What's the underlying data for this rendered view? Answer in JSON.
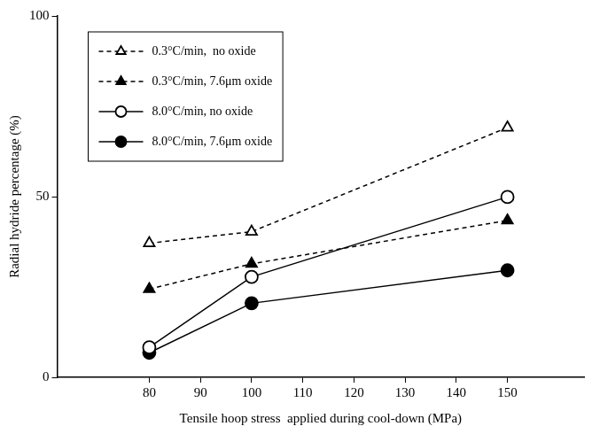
{
  "chart_data": {
    "type": "line",
    "x_label": "Tensile hoop stress  applied during cool-down (MPa)",
    "y_label": "Radial hydride percentage (%)",
    "x": [
      80,
      100,
      150
    ],
    "xlim": [
      62,
      165
    ],
    "xticks": [
      80,
      90,
      100,
      110,
      120,
      130,
      140,
      150
    ],
    "ylim": [
      0,
      100
    ],
    "yticks": [
      0,
      50,
      100
    ],
    "grid": false,
    "legend": "top-left",
    "series": [
      {
        "name": "0.3°C/min,  no oxide",
        "color": "#000000",
        "marker": "triangle_open",
        "line_style": "dashed",
        "values": [
          37.1,
          40.3,
          69.1
        ]
      },
      {
        "name": "0.3°C/min, 7.6μm oxide",
        "color": "#000000",
        "marker": "triangle",
        "line_style": "dashed",
        "values": [
          24.4,
          31.4,
          43.4
        ]
      },
      {
        "name": "8.0°C/min, no oxide",
        "color": "#000000",
        "marker": "circle_open",
        "line_style": "solid",
        "values": [
          8.3,
          27.8,
          49.9
        ]
      },
      {
        "name": "8.0°C/min, 7.6μm oxide",
        "color": "#000000",
        "marker": "circle",
        "line_style": "solid",
        "values": [
          6.8,
          20.5,
          29.6
        ]
      }
    ]
  }
}
